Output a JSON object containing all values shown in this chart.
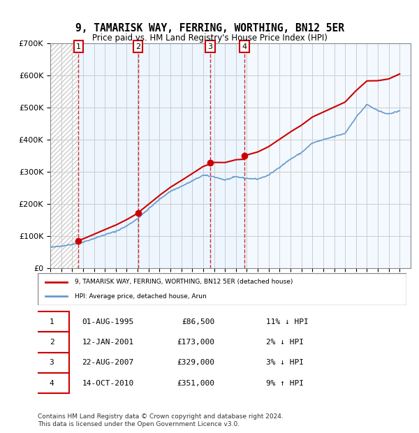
{
  "title": "9, TAMARISK WAY, FERRING, WORTHING, BN12 5ER",
  "subtitle": "Price paid vs. HM Land Registry's House Price Index (HPI)",
  "xlabel": "",
  "ylabel": "",
  "ylim": [
    0,
    700000
  ],
  "yticks": [
    0,
    100000,
    200000,
    300000,
    400000,
    500000,
    600000,
    700000
  ],
  "ytick_labels": [
    "£0",
    "£100K",
    "£200K",
    "£300K",
    "£400K",
    "£500K",
    "£600K",
    "£700K"
  ],
  "x_start_year": 1993,
  "x_end_year": 2026,
  "sales": [
    {
      "num": 1,
      "date": "1995-08-01",
      "year": 1995.58,
      "price": 86500,
      "label": "1",
      "pct": "11%",
      "dir": "↓"
    },
    {
      "num": 2,
      "date": "2001-01-12",
      "year": 2001.03,
      "price": 173000,
      "label": "2",
      "pct": "2%",
      "dir": "↓"
    },
    {
      "num": 3,
      "date": "2007-08-22",
      "year": 2007.64,
      "price": 329000,
      "label": "3",
      "pct": "3%",
      "dir": "↓"
    },
    {
      "num": 4,
      "date": "2010-10-14",
      "year": 2010.78,
      "price": 351000,
      "label": "4",
      "pct": "9%",
      "dir": "↑"
    }
  ],
  "sale_table": [
    {
      "num": "1",
      "date": "01-AUG-1995",
      "price": "£86,500",
      "rel": "11% ↓ HPI"
    },
    {
      "num": "2",
      "date": "12-JAN-2001",
      "price": "£173,000",
      "rel": "2% ↓ HPI"
    },
    {
      "num": "3",
      "date": "22-AUG-2007",
      "price": "£329,000",
      "rel": "3% ↓ HPI"
    },
    {
      "num": "4",
      "date": "14-OCT-2010",
      "price": "£351,000",
      "rel": "9% ↑ HPI"
    }
  ],
  "legend_property": "9, TAMARISK WAY, FERRING, WORTHING, BN12 5ER (detached house)",
  "legend_hpi": "HPI: Average price, detached house, Arun",
  "footer": "Contains HM Land Registry data © Crown copyright and database right 2024.\nThis data is licensed under the Open Government Licence v3.0.",
  "property_color": "#cc0000",
  "hpi_color": "#6699cc",
  "sale_marker_color": "#cc0000",
  "hatch_color": "#cccccc",
  "shade_color": "#ddeeff",
  "grid_color": "#cccccc",
  "background_color": "#ffffff",
  "hpi_data_years": [
    1993,
    1994,
    1995,
    1996,
    1997,
    1998,
    1999,
    2000,
    2001,
    2002,
    2003,
    2004,
    2005,
    2006,
    2007,
    2008,
    2009,
    2010,
    2011,
    2012,
    2013,
    2014,
    2015,
    2016,
    2017,
    2018,
    2019,
    2020,
    2021,
    2022,
    2023,
    2024,
    2025
  ],
  "hpi_values": [
    65000,
    70000,
    75000,
    82000,
    93000,
    105000,
    115000,
    132000,
    155000,
    185000,
    215000,
    240000,
    255000,
    272000,
    290000,
    285000,
    275000,
    285000,
    280000,
    278000,
    290000,
    315000,
    340000,
    360000,
    390000,
    400000,
    410000,
    420000,
    470000,
    510000,
    490000,
    480000,
    490000
  ],
  "property_line_years": [
    1995.58,
    2001.03,
    2007.64,
    2010.78,
    2025.0
  ],
  "property_line_values": [
    86500,
    173000,
    329000,
    351000,
    600000
  ]
}
